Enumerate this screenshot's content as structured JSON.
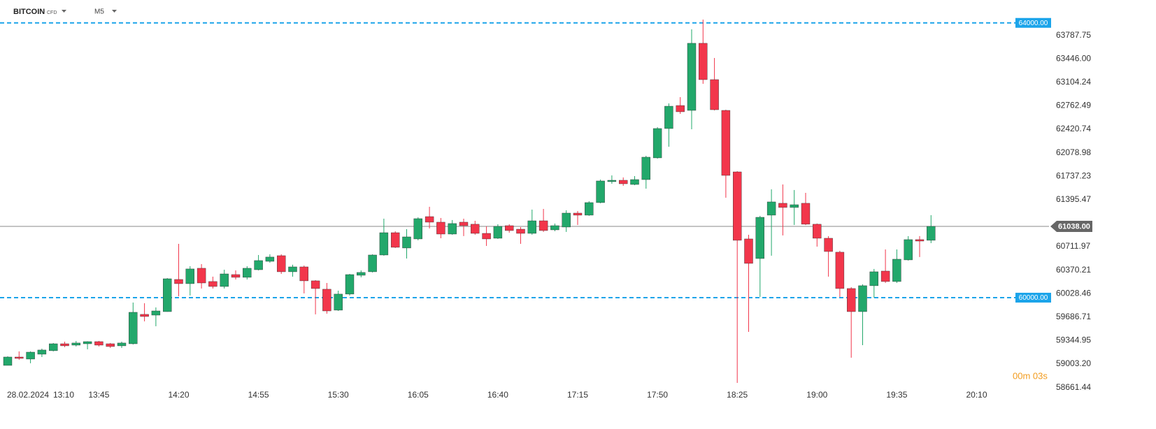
{
  "chart_data": {
    "type": "candlestick",
    "symbol": "BITCOIN",
    "instrument_type": "CFD",
    "timeframe": "M5",
    "date_label": "28.02.2024",
    "countdown": "00m 03s",
    "up_color": "#22a86b",
    "down_color": "#f2364b",
    "categories": [
      null,
      "13:10",
      null,
      null,
      null,
      null,
      null,
      null,
      "13:45",
      null,
      null,
      null,
      null,
      null,
      null,
      "14:20",
      null,
      null,
      null,
      null,
      null,
      null,
      "14:55",
      null,
      null,
      null,
      null,
      null,
      null,
      "15:30",
      null,
      null,
      null,
      null,
      null,
      null,
      "16:05",
      null,
      null,
      null,
      null,
      null,
      null,
      "16:40",
      null,
      null,
      null,
      null,
      null,
      null,
      "17:15",
      null,
      null,
      null,
      null,
      null,
      null,
      "17:50",
      null,
      null,
      null,
      null,
      null,
      null,
      "18:25",
      null,
      null,
      null,
      null,
      null,
      null,
      "19:00",
      null,
      null,
      null,
      null,
      null,
      null,
      "19:35",
      null,
      null,
      null,
      null,
      null,
      null,
      "20:10"
    ],
    "open": [
      59014,
      59136,
      59106,
      59177,
      59228,
      59329,
      59309,
      59329,
      59360,
      59329,
      59299,
      59329,
      59757,
      59746,
      59797,
      60265,
      60204,
      60428,
      60235,
      60163,
      60336,
      60296,
      60407,
      60529,
      60611,
      60377,
      60448,
      60245,
      60123,
      59818,
      60052,
      60326,
      60377,
      60621,
      60946,
      60723,
      60855,
      61180,
      61099,
      60926,
      61099,
      61069,
      60936,
      60865,
      61048,
      60997,
      60936,
      61119,
      60987,
      61028,
      61231,
      61201,
      61384,
      61689,
      61709,
      61648,
      61719,
      62035,
      62462,
      62797,
      62726,
      63703,
      63174,
      62726,
      61831,
      60855,
      60570,
      61201,
      61374,
      61313,
      61374,
      61069,
      60865,
      60662,
      60133,
      59797,
      60174,
      60387,
      60235,
      60550,
      60845,
      60835,
      null,
      null,
      null,
      null
    ],
    "high": [
      59146,
      59218,
      59218,
      59258,
      59340,
      59360,
      59370,
      59365,
      59370,
      59340,
      59360,
      59929,
      59919,
      59858,
      60285,
      60784,
      60458,
      60489,
      60306,
      60407,
      60397,
      60458,
      60621,
      60631,
      60631,
      60479,
      60468,
      60255,
      60214,
      60102,
      60346,
      60397,
      60631,
      61150,
      60967,
      60997,
      61170,
      61323,
      61160,
      61130,
      61150,
      61119,
      61038,
      61069,
      61069,
      61028,
      61282,
      61292,
      61079,
      61272,
      61262,
      61404,
      61719,
      61780,
      61750,
      61770,
      62065,
      62482,
      62828,
      62919,
      63906,
      64048,
      63489,
      62736,
      61841,
      60916,
      61191,
      61577,
      61648,
      61567,
      61526,
      61079,
      60896,
      60682,
      60153,
      60194,
      60418,
      60702,
      60702,
      60896,
      60896,
      61201,
      null,
      null,
      null,
      null
    ],
    "low": [
      59014,
      59096,
      59045,
      59136,
      59218,
      59279,
      59289,
      59248,
      59289,
      59268,
      59268,
      59319,
      59655,
      59584,
      59795,
      60021,
      60031,
      60133,
      60133,
      60133,
      60265,
      60265,
      60397,
      60509,
      60346,
      60306,
      60062,
      59757,
      59767,
      59807,
      60031,
      60296,
      60367,
      60611,
      60723,
      60570,
      60835,
      61007,
      60865,
      60916,
      60896,
      60916,
      60753,
      60855,
      60946,
      60784,
      60916,
      60957,
      60967,
      60957,
      61058,
      61191,
      61374,
      61658,
      61628,
      61638,
      61587,
      62024,
      62197,
      62675,
      62452,
      63113,
      62726,
      61455,
      58760,
      59502,
      60011,
      60611,
      60906,
      61058,
      61058,
      60743,
      60306,
      60011,
      59126,
      59309,
      60001,
      60214,
      60214,
      60540,
      60591,
      60794,
      null,
      null,
      null,
      null
    ],
    "close": [
      59136,
      59116,
      59207,
      59238,
      59329,
      59299,
      59340,
      59360,
      59309,
      59289,
      59340,
      59787,
      59726,
      59807,
      60275,
      60204,
      60418,
      60214,
      60163,
      60346,
      60296,
      60428,
      60540,
      60591,
      60377,
      60448,
      60245,
      60133,
      59807,
      60052,
      60336,
      60367,
      60621,
      60946,
      60733,
      60885,
      61150,
      61099,
      60926,
      61079,
      61048,
      60936,
      60855,
      61038,
      60977,
      60936,
      61119,
      60977,
      61048,
      61231,
      61201,
      61384,
      61699,
      61709,
      61658,
      61719,
      62045,
      62462,
      62787,
      62706,
      63703,
      63174,
      62736,
      61780,
      60835,
      60499,
      61170,
      61394,
      61313,
      61353,
      61069,
      60865,
      60672,
      60133,
      59797,
      60174,
      60377,
      60235,
      60560,
      60845,
      60824,
      61038,
      null,
      null,
      null,
      null
    ],
    "ylim": [
      58434,
      64333
    ],
    "yticks": [
      {
        "value": 63787.75,
        "label": "63787.75"
      },
      {
        "value": 63446,
        "label": "63446.00"
      },
      {
        "value": 63104.24,
        "label": "63104.24"
      },
      {
        "value": 62762.49,
        "label": "62762.49"
      },
      {
        "value": 62420.74,
        "label": "62420.74"
      },
      {
        "value": 62078.98,
        "label": "62078.98"
      },
      {
        "value": 61737.23,
        "label": "61737.23"
      },
      {
        "value": 61395.47,
        "label": "61395.47"
      },
      {
        "value": 60711.97,
        "label": "60711.97"
      },
      {
        "value": 60370.21,
        "label": "60370.21"
      },
      {
        "value": 60028.46,
        "label": "60028.46"
      },
      {
        "value": 59686.71,
        "label": "59686.71"
      },
      {
        "value": 59344.95,
        "label": "59344.95"
      },
      {
        "value": 59003.2,
        "label": "59003.20"
      },
      {
        "value": 58661.44,
        "label": "58661.44"
      }
    ],
    "levels": [
      {
        "value": 64000,
        "label": "64000.00"
      },
      {
        "value": 60000,
        "label": "60000.00"
      }
    ],
    "current_price": {
      "value": 61038,
      "label": "61038.00"
    }
  }
}
